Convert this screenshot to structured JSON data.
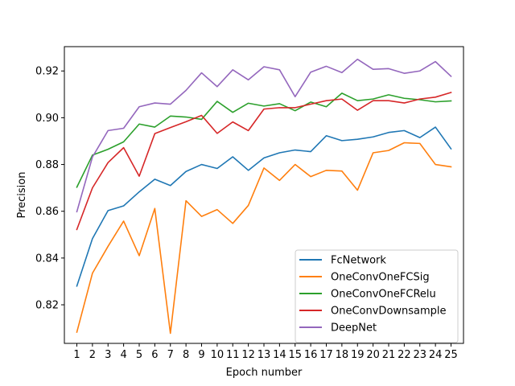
{
  "chart_data": {
    "type": "line",
    "title": "",
    "xlabel": "Epoch number",
    "ylabel": "Precision",
    "x": [
      1,
      2,
      3,
      4,
      5,
      6,
      7,
      8,
      9,
      10,
      11,
      12,
      13,
      14,
      15,
      16,
      17,
      18,
      19,
      20,
      21,
      22,
      23,
      24,
      25
    ],
    "x_tick_labels": [
      "1",
      "2",
      "3",
      "4",
      "5",
      "6",
      "7",
      "8",
      "9",
      "10",
      "11",
      "12",
      "13",
      "14",
      "15",
      "16",
      "17",
      "18",
      "19",
      "20",
      "21",
      "22",
      "23",
      "24",
      "25"
    ],
    "xlim": [
      0.2,
      25.8
    ],
    "ylim": [
      0.8035,
      0.9304
    ],
    "y_ticks": [
      0.82,
      0.84,
      0.86,
      0.88,
      0.9,
      0.92
    ],
    "y_tick_labels": [
      "0.82",
      "0.84",
      "0.86",
      "0.88",
      "0.90",
      "0.92"
    ],
    "grid": false,
    "legend_position": "lower-right",
    "series": [
      {
        "name": "FcNetwork",
        "color": "#1f77b4",
        "values": [
          0.828,
          0.8483,
          0.8603,
          0.8623,
          0.8683,
          0.8737,
          0.871,
          0.877,
          0.88,
          0.8783,
          0.8833,
          0.8775,
          0.8828,
          0.885,
          0.8862,
          0.8855,
          0.8923,
          0.8902,
          0.8908,
          0.8918,
          0.8937,
          0.8945,
          0.8915,
          0.896,
          0.8867
        ]
      },
      {
        "name": "OneConvOneFCSig",
        "color": "#ff7f0e",
        "values": [
          0.8083,
          0.8335,
          0.845,
          0.8558,
          0.841,
          0.8612,
          0.8078,
          0.8645,
          0.8578,
          0.8607,
          0.8548,
          0.8625,
          0.8785,
          0.8732,
          0.88,
          0.8748,
          0.8775,
          0.8772,
          0.869,
          0.885,
          0.886,
          0.8893,
          0.889,
          0.88,
          0.879
        ]
      },
      {
        "name": "OneConvOneFCRelu",
        "color": "#2ca02c",
        "values": [
          0.8703,
          0.884,
          0.8865,
          0.8897,
          0.8973,
          0.896,
          0.9007,
          0.9003,
          0.8993,
          0.907,
          0.9023,
          0.9062,
          0.905,
          0.906,
          0.903,
          0.9067,
          0.9047,
          0.9105,
          0.9073,
          0.908,
          0.9098,
          0.9083,
          0.9077,
          0.9068,
          0.9072
        ]
      },
      {
        "name": "OneConvDownsample",
        "color": "#d62728",
        "values": [
          0.8522,
          0.87,
          0.8808,
          0.8872,
          0.875,
          0.8932,
          0.8958,
          0.8983,
          0.901,
          0.8933,
          0.8982,
          0.8945,
          0.9037,
          0.9043,
          0.9043,
          0.9058,
          0.9073,
          0.908,
          0.9032,
          0.9073,
          0.9073,
          0.9063,
          0.908,
          0.9088,
          0.9108
        ]
      },
      {
        "name": "DeepNet",
        "color": "#9467bd",
        "values": [
          0.8598,
          0.8832,
          0.8945,
          0.8955,
          0.9047,
          0.9063,
          0.9058,
          0.9117,
          0.9192,
          0.9133,
          0.9205,
          0.9162,
          0.9218,
          0.9205,
          0.909,
          0.9195,
          0.922,
          0.9193,
          0.925,
          0.9207,
          0.921,
          0.919,
          0.92,
          0.924,
          0.9177
        ]
      }
    ]
  }
}
